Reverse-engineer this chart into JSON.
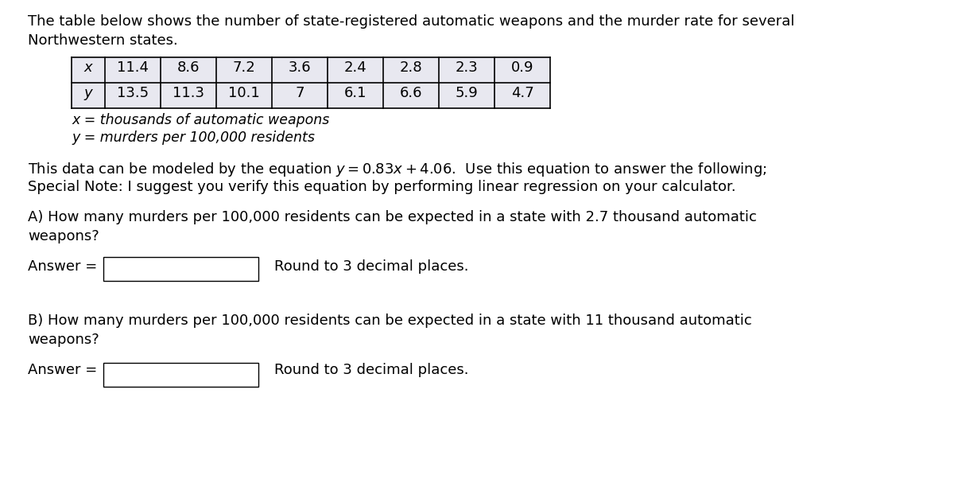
{
  "title_line1": "The table below shows the number of state-registered automatic weapons and the murder rate for several",
  "title_line2": "Northwestern states.",
  "x_values": [
    "11.4",
    "8.6",
    "7.2",
    "3.6",
    "2.4",
    "2.8",
    "2.3",
    "0.9"
  ],
  "y_values": [
    "13.5",
    "11.3",
    "10.1",
    "7",
    "6.1",
    "6.6",
    "5.9",
    "4.7"
  ],
  "x_label": "x = thousands of automatic weapons",
  "y_label": "y = murders per 100,000 residents",
  "equation_text": "This data can be modeled by the equation $y = 0.83x + 4.06$.  Use this equation to answer the following;",
  "special_note": "Special Note: I suggest you verify this equation by performing linear regression on your calculator.",
  "question_a_line1": "A) How many murders per 100,000 residents can be expected in a state with 2.7 thousand automatic",
  "question_a_line2": "weapons?",
  "question_b_line1": "B) How many murders per 100,000 residents can be expected in a state with 11 thousand automatic",
  "question_b_line2": "weapons?",
  "answer_label": "Answer = ",
  "round_label": "Round to 3 decimal places.",
  "bg_color": "#ffffff",
  "text_color": "#000000",
  "table_cell_color": "#e8e8f0",
  "font_size": 13.0,
  "table_header_x": "x",
  "table_header_y": "y"
}
